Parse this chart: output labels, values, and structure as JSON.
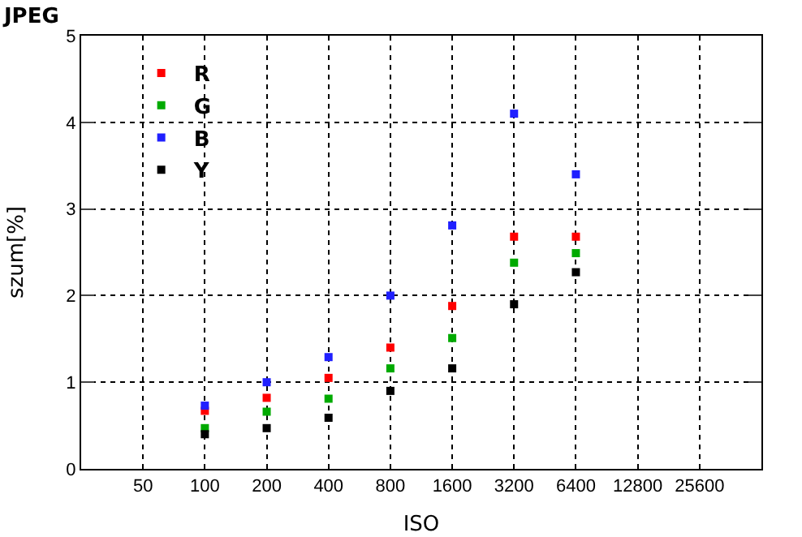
{
  "chart_data": {
    "type": "scatter",
    "title": "JPEG",
    "xlabel": "ISO",
    "ylabel": "szum[%]",
    "log": "x",
    "x": [
      100,
      200,
      400,
      800,
      1600,
      3200,
      6400
    ],
    "series": [
      {
        "name": "R",
        "color": "#ff0000",
        "values": [
          0.67,
          0.82,
          1.05,
          1.4,
          1.88,
          2.68,
          2.68
        ]
      },
      {
        "name": "G",
        "color": "#00aa00",
        "values": [
          0.47,
          0.66,
          0.81,
          1.16,
          1.51,
          2.38,
          2.49
        ]
      },
      {
        "name": "B",
        "color": "#2020ff",
        "values": [
          0.73,
          1.0,
          1.29,
          2.0,
          2.81,
          4.1,
          3.4
        ]
      },
      {
        "name": "Y",
        "color": "#000000",
        "values": [
          0.4,
          0.47,
          0.59,
          0.9,
          1.16,
          1.9,
          2.27
        ]
      }
    ],
    "xlim": [
      25,
      51200
    ],
    "xticks": [
      50,
      100,
      200,
      400,
      800,
      1600,
      3200,
      6400,
      12800,
      25600
    ],
    "ylim": [
      0,
      5
    ],
    "yticks": [
      0,
      1,
      2,
      3,
      4,
      5
    ],
    "grid": true,
    "legend": "top left",
    "marker": "square",
    "line_style": "dotted"
  }
}
